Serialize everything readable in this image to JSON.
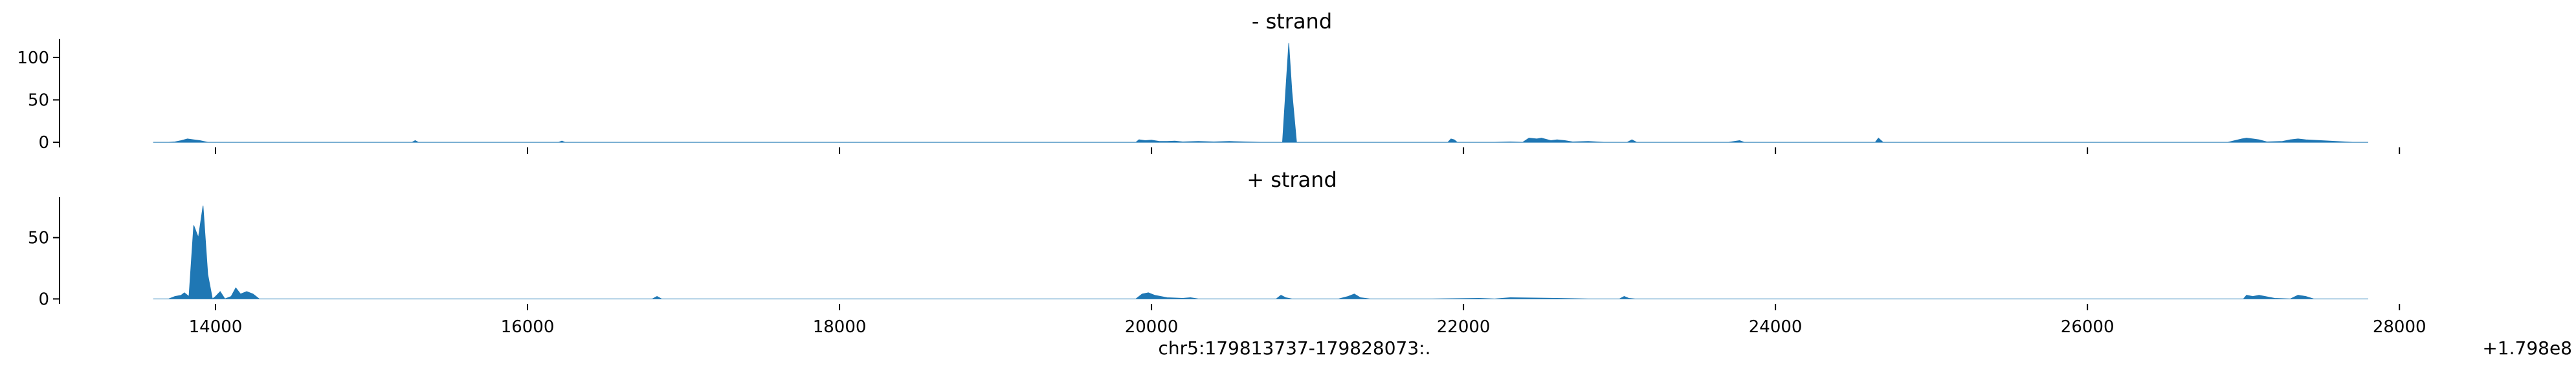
{
  "chart_data": [
    {
      "type": "area",
      "title": "- strand",
      "color": "#1f77b4",
      "xlim": [
        13000,
        28800
      ],
      "ylim": [
        -6,
        122
      ],
      "yticks": [
        0,
        50,
        100
      ],
      "xticks": [
        14000,
        16000,
        18000,
        20000,
        22000,
        24000,
        26000,
        28000
      ],
      "x": [
        13600,
        13700,
        13740,
        13780,
        13820,
        13860,
        13900,
        13950,
        14000,
        14100,
        14500,
        14900,
        15260,
        15280,
        15300,
        16200,
        16220,
        16240,
        18900,
        19100,
        19900,
        19920,
        19960,
        20000,
        20050,
        20100,
        20150,
        20200,
        20300,
        20400,
        20500,
        20600,
        20700,
        20840,
        20860,
        20880,
        20900,
        20930,
        21000,
        21500,
        21900,
        21920,
        21940,
        21960,
        22200,
        22300,
        22380,
        22420,
        22470,
        22500,
        22560,
        22600,
        22650,
        22700,
        22800,
        22900,
        23050,
        23080,
        23110,
        23700,
        23770,
        23800,
        24600,
        24640,
        24660,
        24690,
        24800,
        25500,
        25600,
        26500,
        26900,
        26990,
        27020,
        27060,
        27100,
        27150,
        27250,
        27300,
        27350,
        27400,
        27700,
        27800
      ],
      "values": [
        0,
        0,
        0.5,
        2,
        4,
        3,
        2,
        0,
        0,
        0,
        0,
        0,
        0,
        2,
        0,
        0,
        1.5,
        0,
        0,
        0,
        0,
        3,
        2,
        2.5,
        1,
        1,
        1.5,
        0.5,
        1,
        0.5,
        1,
        0.5,
        0,
        0,
        60,
        117,
        60,
        0,
        0,
        0,
        0,
        4,
        3,
        0,
        0,
        0.5,
        0,
        5,
        4,
        5,
        2,
        3,
        2,
        0.5,
        1,
        0,
        0,
        3,
        0,
        0,
        2,
        0,
        0,
        0,
        5,
        0,
        0,
        0,
        0,
        0,
        0,
        4,
        5,
        4,
        3,
        0.5,
        1,
        3,
        4,
        3,
        0,
        0
      ]
    },
    {
      "type": "area",
      "title": "+ strand",
      "color": "#1f77b4",
      "xlim": [
        13000,
        28800
      ],
      "ylim": [
        -4,
        83
      ],
      "yticks": [
        0,
        50
      ],
      "xticks": [
        14000,
        16000,
        18000,
        20000,
        22000,
        24000,
        26000,
        28000
      ],
      "xticklabels": [
        "14000",
        "16000",
        "18000",
        "20000",
        "22000",
        "24000",
        "26000",
        "28000"
      ],
      "xlabel": "chr5:179813737-179828073:.",
      "offset_text": "+1.798e8",
      "x": [
        13600,
        13700,
        13740,
        13780,
        13800,
        13830,
        13860,
        13890,
        13920,
        13950,
        13980,
        14000,
        14030,
        14060,
        14100,
        14130,
        14160,
        14200,
        14240,
        14280,
        14400,
        14500,
        14700,
        16800,
        16830,
        16860,
        18800,
        19600,
        19900,
        19940,
        19980,
        20020,
        20100,
        20200,
        20250,
        20300,
        20400,
        20700,
        20800,
        20830,
        20860,
        20900,
        21200,
        21260,
        21300,
        21340,
        21400,
        21800,
        22100,
        22200,
        22300,
        22600,
        22800,
        23000,
        23030,
        23060,
        23100,
        26900,
        27000,
        27020,
        27060,
        27100,
        27200,
        27300,
        27350,
        27400,
        27450,
        27800
      ],
      "values": [
        0,
        0,
        2,
        3,
        5,
        2,
        60,
        50,
        76,
        20,
        0,
        2,
        6,
        0,
        2,
        9,
        4,
        6,
        4,
        0,
        0,
        0,
        0,
        0,
        2,
        0,
        0,
        0,
        0,
        4,
        5,
        3,
        1,
        0.5,
        1,
        0,
        0,
        0,
        0,
        3,
        1,
        0,
        0,
        2,
        4,
        1,
        0,
        0,
        0.5,
        0,
        1,
        0.5,
        0,
        0,
        2,
        0.5,
        0,
        0,
        0,
        3,
        2,
        3,
        0.5,
        0,
        3,
        2,
        0,
        0
      ]
    }
  ]
}
